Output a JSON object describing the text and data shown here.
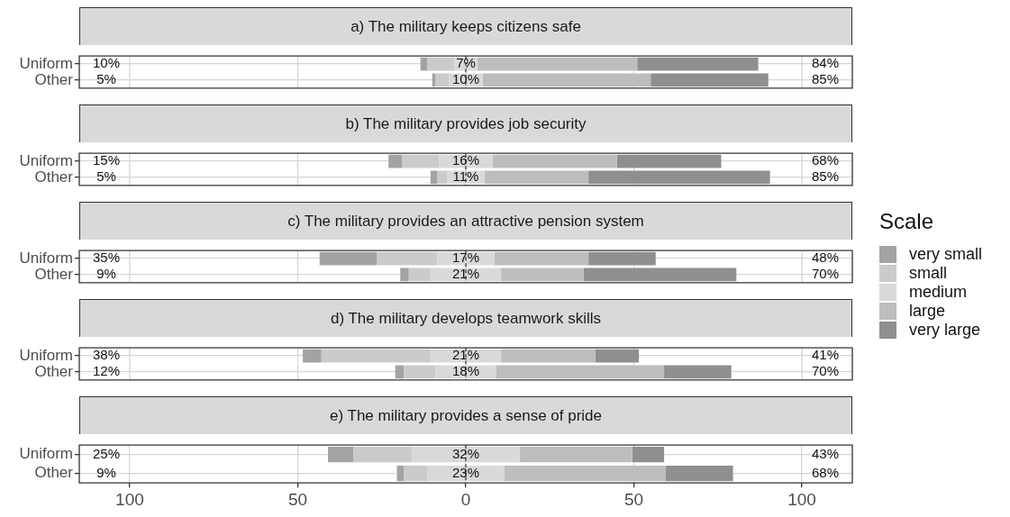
{
  "chart_data": [
    {
      "type": "bar",
      "title": "a) The military keeps citizens safe",
      "orientation": "horizontal",
      "categories": [
        "Uniform",
        "Other"
      ],
      "series": [
        {
          "color": "#a3a3a3",
          "base": [
            -13.5,
            -10
          ],
          "values": [
            2,
            1
          ]
        },
        {
          "color": "#cbcbcb",
          "base": [
            -11.5,
            -9
          ],
          "values": [
            8,
            4
          ]
        },
        {
          "color": "#d9d9d9",
          "base": [
            -3.5,
            -5
          ],
          "values": [
            7,
            10
          ],
          "value_labels": [
            "7%",
            "10%"
          ]
        },
        {
          "color": "#bdbdbd",
          "base": [
            3.5,
            5
          ],
          "values": [
            47.5,
            50
          ]
        },
        {
          "color": "#8f8f8f",
          "base": [
            51,
            55
          ],
          "values": [
            36,
            35
          ]
        }
      ],
      "annotations": [
        "10%",
        "5%",
        "84%",
        "85%"
      ],
      "ref_lines": [
        {
          "axis": "x",
          "value": 0,
          "color": "#333333",
          "line_style": "dashed"
        }
      ],
      "xlim": [
        -115,
        115
      ],
      "tick_labels": "y",
      "grid": true
    },
    {
      "type": "bar",
      "title": "b) The military provides job security",
      "orientation": "horizontal",
      "categories": [
        "Uniform",
        "Other"
      ],
      "series": [
        {
          "color": "#a3a3a3",
          "base": [
            -23,
            -10.5
          ],
          "values": [
            4,
            2
          ]
        },
        {
          "color": "#cbcbcb",
          "base": [
            -19,
            -8.5
          ],
          "values": [
            11,
            3
          ]
        },
        {
          "color": "#d9d9d9",
          "base": [
            -8,
            -5.5
          ],
          "values": [
            16,
            11
          ],
          "value_labels": [
            "16%",
            "11%"
          ]
        },
        {
          "color": "#bdbdbd",
          "base": [
            8,
            5.5
          ],
          "values": [
            37,
            31
          ]
        },
        {
          "color": "#8f8f8f",
          "base": [
            45,
            36.5
          ],
          "values": [
            31,
            54
          ]
        }
      ],
      "annotations": [
        "15%",
        "5%",
        "68%",
        "85%"
      ],
      "ref_lines": [
        {
          "axis": "x",
          "value": 0,
          "color": "#333333",
          "line_style": "dashed"
        }
      ],
      "xlim": [
        -115,
        115
      ],
      "tick_labels": "y",
      "grid": true
    },
    {
      "type": "bar",
      "title": "c) The military provides an attractive pension system",
      "orientation": "horizontal",
      "categories": [
        "Uniform",
        "Other"
      ],
      "series": [
        {
          "name": "very small",
          "color": "#a3a3a3",
          "base": [
            -43.5,
            -19.5
          ],
          "values": [
            17,
            2.5
          ]
        },
        {
          "name": "small",
          "color": "#cbcbcb",
          "base": [
            -26.5,
            -17
          ],
          "values": [
            18,
            6.5
          ]
        },
        {
          "name": "medium",
          "color": "#d9d9d9",
          "base": [
            -8.5,
            -10.5
          ],
          "values": [
            17,
            21
          ],
          "value_labels": [
            "17%",
            "21%"
          ]
        },
        {
          "name": "large",
          "color": "#bdbdbd",
          "base": [
            8.5,
            10.5
          ],
          "values": [
            28,
            24.5
          ]
        },
        {
          "name": "very large",
          "color": "#8f8f8f",
          "base": [
            36.5,
            35
          ],
          "values": [
            20,
            45.5
          ]
        }
      ],
      "annotations": [
        "35%",
        "9%",
        "48%",
        "70%"
      ],
      "ref_lines": [
        {
          "axis": "x",
          "value": 0,
          "color": "#333333",
          "line_style": "dashed"
        }
      ],
      "legend": "right",
      "legend_title": "Scale",
      "xlim": [
        -115,
        115
      ],
      "tick_labels": "y",
      "grid": true
    },
    {
      "type": "bar",
      "title": "d) The military develops teamwork skills",
      "orientation": "horizontal",
      "categories": [
        "Uniform",
        "Other"
      ],
      "series": [
        {
          "color": "#a3a3a3",
          "base": [
            -48.5,
            -21
          ],
          "values": [
            5.5,
            2.5
          ]
        },
        {
          "color": "#cbcbcb",
          "base": [
            -43,
            -18.5
          ],
          "values": [
            32.5,
            9.5
          ]
        },
        {
          "color": "#d9d9d9",
          "base": [
            -10.5,
            -9
          ],
          "values": [
            21,
            18
          ],
          "value_labels": [
            "21%",
            "18%"
          ]
        },
        {
          "color": "#bdbdbd",
          "base": [
            10.5,
            9
          ],
          "values": [
            28,
            50
          ]
        },
        {
          "color": "#8f8f8f",
          "base": [
            38.5,
            59
          ],
          "values": [
            13,
            20
          ]
        }
      ],
      "annotations": [
        "38%",
        "12%",
        "41%",
        "70%"
      ],
      "ref_lines": [
        {
          "axis": "x",
          "value": 0,
          "color": "#333333",
          "line_style": "dashed"
        }
      ],
      "xlim": [
        -115,
        115
      ],
      "tick_labels": "y",
      "grid": true
    },
    {
      "type": "bar",
      "title": "e) The military provides a sense of pride",
      "orientation": "horizontal",
      "categories": [
        "Uniform",
        "Other"
      ],
      "series": [
        {
          "color": "#a3a3a3",
          "base": [
            -41,
            -20.5
          ],
          "values": [
            7.5,
            2
          ]
        },
        {
          "color": "#cbcbcb",
          "base": [
            -33.5,
            -18.5
          ],
          "values": [
            17.5,
            7
          ]
        },
        {
          "color": "#d9d9d9",
          "base": [
            -16,
            -11.5
          ],
          "values": [
            32,
            23
          ],
          "value_labels": [
            "32%",
            "23%"
          ]
        },
        {
          "color": "#bdbdbd",
          "base": [
            16,
            11.5
          ],
          "values": [
            33.5,
            48
          ]
        },
        {
          "color": "#8f8f8f",
          "base": [
            49.5,
            59.5
          ],
          "values": [
            9.5,
            20
          ]
        }
      ],
      "annotations": [
        "25%",
        "9%",
        "43%",
        "68%"
      ],
      "ref_lines": [
        {
          "axis": "x",
          "value": 0,
          "color": "#333333",
          "line_style": "dashed"
        }
      ],
      "xlim": [
        -115,
        115
      ],
      "xticks": [
        {
          "value": -100,
          "label": "100"
        },
        {
          "value": -50,
          "label": "50"
        },
        0,
        50,
        100
      ],
      "grid": true
    }
  ]
}
